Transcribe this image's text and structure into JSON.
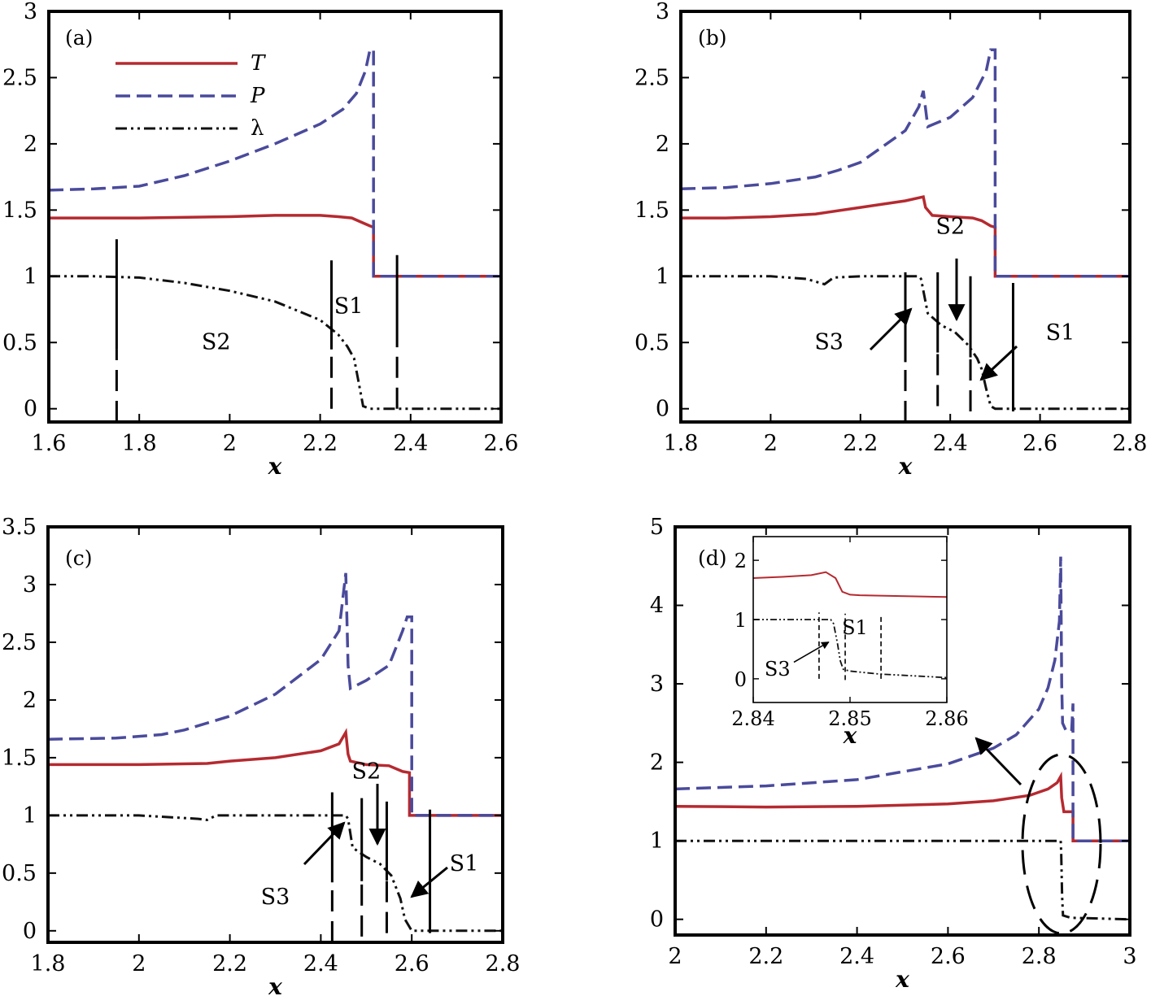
{
  "colors": {
    "T": "#b52a30",
    "P": "#4a4a9c",
    "lambda": "#111111",
    "axis": "#000000"
  },
  "legend": {
    "entries": [
      "T",
      "P",
      "λ"
    ]
  },
  "chart_data": [
    {
      "type": "line",
      "panel_label": "(a)",
      "xlabel": "x",
      "xlim": [
        1.6,
        2.6
      ],
      "ylim": [
        -0.1,
        3
      ],
      "xticks": [
        1.6,
        1.8,
        2,
        2.2,
        2.4,
        2.6
      ],
      "xtick_labels": [
        "1.6",
        "1.8",
        "2",
        "2.2",
        "2.4",
        "2.6"
      ],
      "yticks": [
        0,
        0.5,
        1,
        1.5,
        2,
        2.5,
        3
      ],
      "ytick_labels": [
        "0",
        "0.5",
        "1",
        "1.5",
        "2",
        "2.5",
        "3"
      ],
      "series": [
        {
          "name": "T",
          "x": [
            1.6,
            1.8,
            2.0,
            2.1,
            2.2,
            2.24,
            2.27,
            2.29,
            2.31,
            2.318,
            2.318,
            2.6
          ],
          "y": [
            1.44,
            1.44,
            1.45,
            1.46,
            1.46,
            1.45,
            1.44,
            1.41,
            1.38,
            1.37,
            1.0,
            1.0
          ]
        },
        {
          "name": "P",
          "x": [
            1.6,
            1.7,
            1.8,
            1.9,
            2.0,
            2.1,
            2.2,
            2.25,
            2.28,
            2.3,
            2.31,
            2.318,
            2.318,
            2.6
          ],
          "y": [
            1.65,
            1.66,
            1.68,
            1.76,
            1.87,
            2.0,
            2.15,
            2.26,
            2.38,
            2.55,
            2.71,
            2.71,
            1.0,
            1.0
          ]
        },
        {
          "name": "λ",
          "x": [
            1.6,
            1.7,
            1.8,
            1.9,
            2.0,
            2.1,
            2.2,
            2.24,
            2.26,
            2.275,
            2.285,
            2.295,
            2.31,
            2.6
          ],
          "y": [
            1.0,
            1.0,
            0.99,
            0.95,
            0.89,
            0.81,
            0.67,
            0.56,
            0.47,
            0.38,
            0.2,
            0.02,
            0.0,
            0.0
          ]
        }
      ],
      "markers": [
        {
          "x": 1.75,
          "style": "dashed-solid",
          "y_range": [
            -0.1,
            1.28
          ]
        },
        {
          "x": 2.225,
          "style": "dashed-solid",
          "y_range": [
            0.0,
            1.12
          ]
        },
        {
          "x": 2.37,
          "style": "dashed-solid",
          "y_range": [
            0.0,
            1.16
          ]
        }
      ],
      "annotations": [
        {
          "text": "S2",
          "x": 1.97,
          "y": 0.45
        },
        {
          "text": "S1",
          "x": 2.263,
          "y": 0.72
        }
      ]
    },
    {
      "type": "line",
      "panel_label": "(b)",
      "xlabel": "x",
      "xlim": [
        1.8,
        2.8
      ],
      "ylim": [
        -0.1,
        3
      ],
      "xticks": [
        1.8,
        2,
        2.2,
        2.4,
        2.6,
        2.8
      ],
      "xtick_labels": [
        "1.8",
        "2",
        "2.2",
        "2.4",
        "2.6",
        "2.8"
      ],
      "yticks": [
        0,
        0.5,
        1,
        1.5,
        2,
        2.5,
        3
      ],
      "ytick_labels": [
        "0",
        "0.5",
        "1",
        "1.5",
        "2",
        "2.5",
        "3"
      ],
      "series": [
        {
          "name": "T",
          "x": [
            1.8,
            1.9,
            2.0,
            2.1,
            2.2,
            2.3,
            2.34,
            2.345,
            2.36,
            2.4,
            2.45,
            2.47,
            2.49,
            2.5,
            2.5,
            2.8
          ],
          "y": [
            1.44,
            1.44,
            1.45,
            1.47,
            1.52,
            1.57,
            1.6,
            1.52,
            1.46,
            1.45,
            1.44,
            1.42,
            1.38,
            1.37,
            1.0,
            1.0
          ]
        },
        {
          "name": "P",
          "x": [
            1.8,
            1.9,
            2.0,
            2.1,
            2.15,
            2.2,
            2.3,
            2.33,
            2.34,
            2.35,
            2.4,
            2.45,
            2.48,
            2.49,
            2.5,
            2.5,
            2.8
          ],
          "y": [
            1.66,
            1.67,
            1.7,
            1.75,
            1.8,
            1.86,
            2.1,
            2.28,
            2.4,
            2.13,
            2.2,
            2.35,
            2.55,
            2.71,
            2.71,
            1.0,
            1.0
          ]
        },
        {
          "name": "λ",
          "x": [
            1.8,
            2.0,
            2.08,
            2.12,
            2.14,
            2.2,
            2.33,
            2.335,
            2.35,
            2.38,
            2.41,
            2.44,
            2.46,
            2.47,
            2.48,
            2.49,
            2.5,
            2.8
          ],
          "y": [
            1.0,
            1.0,
            0.98,
            0.94,
            0.99,
            1.0,
            1.0,
            0.98,
            0.72,
            0.63,
            0.58,
            0.48,
            0.38,
            0.3,
            0.15,
            0.02,
            0.0,
            0.0
          ]
        }
      ],
      "markers": [
        {
          "x": 2.3,
          "style": "dashed-solid",
          "y_range": [
            -0.1,
            1.03
          ]
        },
        {
          "x": 2.372,
          "style": "dashed-solid",
          "y_range": [
            0.02,
            1.03
          ]
        },
        {
          "x": 2.445,
          "style": "dashed-solid",
          "y_range": [
            -0.02,
            1.0
          ]
        },
        {
          "x": 2.54,
          "style": "solid",
          "y_range": [
            -0.02,
            0.95
          ]
        }
      ],
      "annotations": [
        {
          "text": "S2",
          "x": 2.4,
          "y": 1.32
        },
        {
          "text": "S3",
          "x": 2.13,
          "y": 0.45
        },
        {
          "text": "S1",
          "x": 2.645,
          "y": 0.52
        }
      ]
    },
    {
      "type": "line",
      "panel_label": "(c)",
      "xlabel": "x",
      "xlim": [
        1.8,
        2.8
      ],
      "ylim": [
        -0.1,
        3.5
      ],
      "xticks": [
        1.8,
        2,
        2.2,
        2.4,
        2.6,
        2.8
      ],
      "xtick_labels": [
        "1.8",
        "2",
        "2.2",
        "2.4",
        "2.6",
        "2.8"
      ],
      "yticks": [
        0,
        0.5,
        1,
        1.5,
        2,
        2.5,
        3,
        3.5
      ],
      "ytick_labels": [
        "0",
        "0.5",
        "1",
        "1.5",
        "2",
        "2.5",
        "3",
        "3.5"
      ],
      "series": [
        {
          "name": "T",
          "x": [
            1.8,
            2.0,
            2.15,
            2.2,
            2.3,
            2.4,
            2.44,
            2.455,
            2.46,
            2.465,
            2.5,
            2.55,
            2.58,
            2.595,
            2.595,
            2.8
          ],
          "y": [
            1.44,
            1.44,
            1.45,
            1.47,
            1.5,
            1.56,
            1.62,
            1.72,
            1.53,
            1.47,
            1.44,
            1.43,
            1.38,
            1.37,
            1.0,
            1.0
          ]
        },
        {
          "name": "P",
          "x": [
            1.8,
            1.95,
            2.05,
            2.1,
            2.2,
            2.3,
            2.4,
            2.44,
            2.455,
            2.46,
            2.465,
            2.5,
            2.55,
            2.58,
            2.59,
            2.6,
            2.6,
            2.8
          ],
          "y": [
            1.66,
            1.67,
            1.7,
            1.74,
            1.86,
            2.05,
            2.35,
            2.6,
            3.1,
            2.3,
            2.1,
            2.17,
            2.3,
            2.6,
            2.72,
            2.72,
            1.0,
            1.0
          ]
        },
        {
          "name": "λ",
          "x": [
            1.8,
            2.0,
            2.13,
            2.15,
            2.17,
            2.3,
            2.455,
            2.46,
            2.47,
            2.5,
            2.53,
            2.555,
            2.565,
            2.575,
            2.585,
            2.6,
            2.8
          ],
          "y": [
            1.0,
            1.0,
            0.97,
            0.96,
            1.0,
            1.0,
            1.0,
            0.97,
            0.72,
            0.64,
            0.58,
            0.48,
            0.38,
            0.28,
            0.1,
            0.0,
            0.0
          ]
        }
      ],
      "markers": [
        {
          "x": 2.425,
          "style": "dashed-solid",
          "y_range": [
            -0.1,
            1.2
          ]
        },
        {
          "x": 2.49,
          "style": "dashed-solid",
          "y_range": [
            -0.05,
            1.15
          ]
        },
        {
          "x": 2.545,
          "style": "dashed-solid",
          "y_range": [
            -0.02,
            1.12
          ]
        },
        {
          "x": 2.64,
          "style": "solid",
          "y_range": [
            -0.02,
            1.05
          ]
        }
      ],
      "annotations": [
        {
          "text": "S2",
          "x": 2.5,
          "y": 1.32
        },
        {
          "text": "S3",
          "x": 2.3,
          "y": 0.23
        },
        {
          "text": "S1",
          "x": 2.715,
          "y": 0.52
        }
      ]
    },
    {
      "type": "line",
      "panel_label": "(d)",
      "xlabel": "x",
      "xlim": [
        2,
        3
      ],
      "ylim": [
        -0.2,
        5
      ],
      "xticks": [
        2,
        2.2,
        2.4,
        2.6,
        2.8,
        3
      ],
      "xtick_labels": [
        "2",
        "2.2",
        "2.4",
        "2.6",
        "2.8",
        "3"
      ],
      "yticks": [
        0,
        1,
        2,
        3,
        4,
        5
      ],
      "ytick_labels": [
        "0",
        "1",
        "2",
        "3",
        "4",
        "5"
      ],
      "series": [
        {
          "name": "T",
          "x": [
            2.0,
            2.2,
            2.4,
            2.6,
            2.7,
            2.78,
            2.82,
            2.84,
            2.848,
            2.85,
            2.855,
            2.875,
            2.875,
            3.0
          ],
          "y": [
            1.44,
            1.43,
            1.44,
            1.47,
            1.51,
            1.58,
            1.66,
            1.74,
            1.82,
            1.55,
            1.37,
            1.37,
            1.0,
            1.0
          ]
        },
        {
          "name": "P",
          "x": [
            2.0,
            2.2,
            2.4,
            2.6,
            2.7,
            2.75,
            2.8,
            2.82,
            2.835,
            2.845,
            2.848,
            2.85,
            2.852,
            2.86,
            2.872,
            2.875,
            2.875,
            3.0
          ],
          "y": [
            1.66,
            1.7,
            1.78,
            1.98,
            2.18,
            2.35,
            2.68,
            2.95,
            3.3,
            3.8,
            4.62,
            3.0,
            2.5,
            2.4,
            2.4,
            2.75,
            1.0,
            1.0
          ]
        },
        {
          "name": "λ",
          "x": [
            2.0,
            2.5,
            2.8,
            2.848,
            2.849,
            2.851,
            2.853,
            2.87,
            3.0
          ],
          "y": [
            1.0,
            1.0,
            1.0,
            1.0,
            0.85,
            0.3,
            0.05,
            0.02,
            0.0
          ]
        }
      ],
      "annotations": [],
      "inset": {
        "xlim": [
          2.84,
          2.86
        ],
        "ylim": [
          -0.4,
          2.4
        ],
        "xticks": [
          2.84,
          2.85,
          2.86
        ],
        "xtick_labels": [
          "2.84",
          "2.85",
          "2.86"
        ],
        "yticks": [
          0,
          1,
          2
        ],
        "ytick_labels": [
          "0",
          "1",
          "2"
        ],
        "xlabel": "x",
        "series": [
          {
            "name": "T",
            "x": [
              2.84,
              2.843,
              2.846,
              2.8475,
              2.8485,
              2.8492,
              2.85,
              2.851,
              2.86
            ],
            "y": [
              1.7,
              1.72,
              1.75,
              1.8,
              1.7,
              1.47,
              1.42,
              1.41,
              1.38
            ]
          },
          {
            "name": "λ",
            "x": [
              2.84,
              2.848,
              2.8483,
              2.8487,
              2.849,
              2.8493,
              2.85,
              2.853,
              2.86
            ],
            "y": [
              1.0,
              1.0,
              0.93,
              0.6,
              0.3,
              0.16,
              0.13,
              0.08,
              0.02
            ]
          }
        ],
        "markers": [
          {
            "x": 2.8468,
            "style": "dashed",
            "y_range": [
              0.0,
              1.12
            ]
          },
          {
            "x": 2.8495,
            "style": "dashed",
            "y_range": [
              -0.02,
              1.1
            ]
          },
          {
            "x": 2.8532,
            "style": "dashed",
            "y_range": [
              0.0,
              1.06
            ]
          }
        ],
        "annotations": [
          {
            "text": "S1",
            "x": 2.8505,
            "y": 0.75
          },
          {
            "text": "S3",
            "x": 2.8425,
            "y": 0.05
          }
        ]
      }
    }
  ]
}
